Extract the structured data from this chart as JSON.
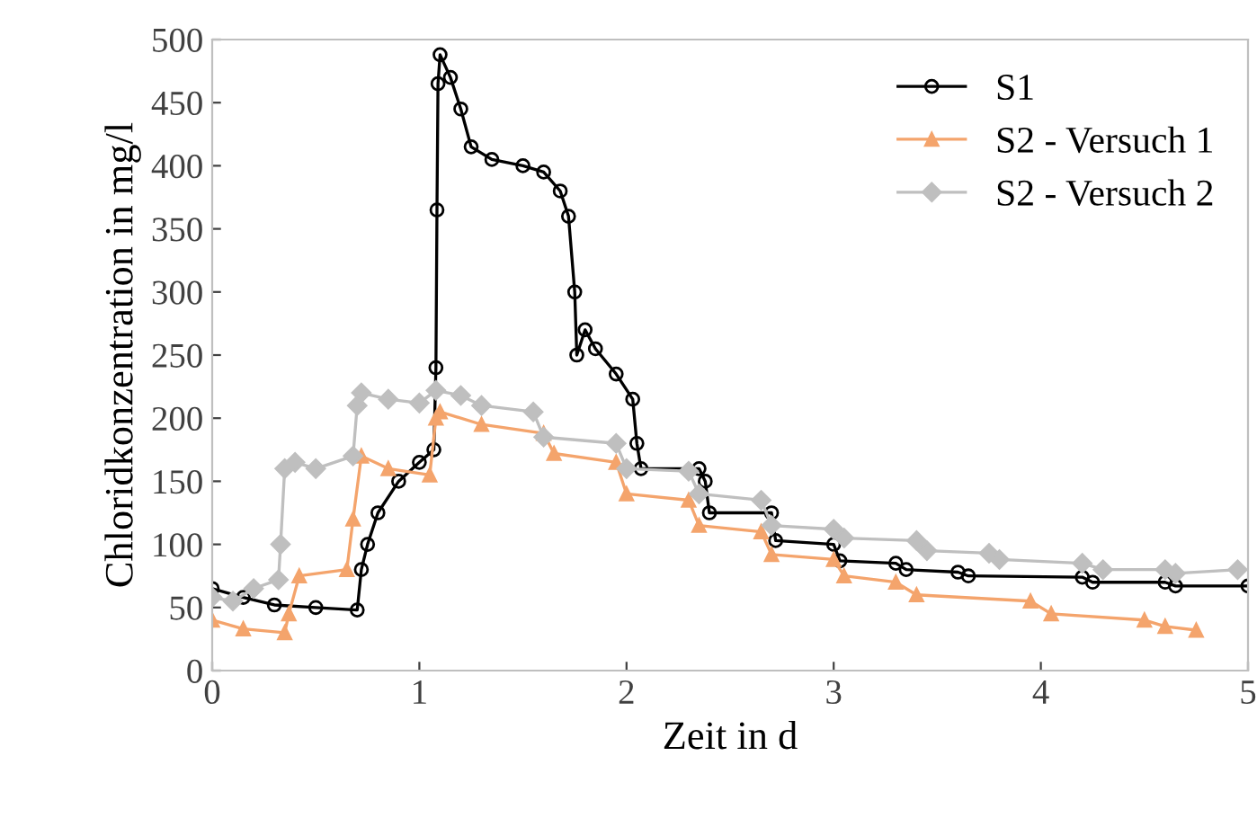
{
  "chart_data": {
    "type": "line",
    "xlabel": "Zeit in d",
    "ylabel": "Chloridkonzentration in mg/l",
    "xlim": [
      0,
      5
    ],
    "xticks": [
      0,
      1,
      2,
      3,
      4,
      5
    ],
    "ylim": [
      0,
      500
    ],
    "yticks": [
      0,
      50,
      100,
      150,
      200,
      250,
      300,
      350,
      400,
      450,
      500
    ],
    "grid": false,
    "legend": "top right",
    "series": [
      {
        "name": "S1",
        "color": "#000000",
        "marker": "circle",
        "x": [
          0,
          0.15,
          0.3,
          0.5,
          0.7,
          0.72,
          0.75,
          0.8,
          0.9,
          1.0,
          1.07,
          1.08,
          1.085,
          1.09,
          1.1,
          1.15,
          1.2,
          1.25,
          1.35,
          1.5,
          1.6,
          1.68,
          1.72,
          1.75,
          1.76,
          1.8,
          1.85,
          1.95,
          2.03,
          2.05,
          2.07,
          2.35,
          2.38,
          2.4,
          2.7,
          2.72,
          3.0,
          3.03,
          3.3,
          3.35,
          3.6,
          3.65,
          4.2,
          4.25,
          4.6,
          4.65,
          5.0
        ],
        "values": [
          65,
          58,
          52,
          50,
          48,
          80,
          100,
          125,
          150,
          165,
          175,
          240,
          365,
          465,
          488,
          470,
          445,
          415,
          405,
          400,
          395,
          380,
          360,
          300,
          250,
          270,
          255,
          235,
          215,
          180,
          160,
          160,
          150,
          125,
          125,
          103,
          100,
          87,
          85,
          80,
          78,
          75,
          74,
          70,
          70,
          67,
          67
        ]
      },
      {
        "name": "S2 - Versuch 1",
        "color": "#f4a46c",
        "marker": "triangle",
        "x": [
          0,
          0.15,
          0.35,
          0.37,
          0.42,
          0.65,
          0.68,
          0.72,
          0.85,
          1.05,
          1.08,
          1.1,
          1.3,
          1.6,
          1.65,
          1.95,
          2.0,
          2.3,
          2.35,
          2.65,
          2.7,
          3.0,
          3.05,
          3.3,
          3.4,
          3.95,
          4.05,
          4.5,
          4.6,
          4.75
        ],
        "values": [
          40,
          33,
          30,
          45,
          75,
          80,
          120,
          170,
          160,
          155,
          200,
          205,
          195,
          188,
          172,
          165,
          140,
          135,
          115,
          110,
          92,
          88,
          75,
          70,
          60,
          55,
          45,
          40,
          35,
          32
        ]
      },
      {
        "name": "S2 - Versuch 2",
        "color": "#bfbfbf",
        "marker": "diamond",
        "x": [
          0,
          0.1,
          0.2,
          0.32,
          0.33,
          0.35,
          0.4,
          0.5,
          0.68,
          0.7,
          0.72,
          0.85,
          1.0,
          1.08,
          1.2,
          1.3,
          1.55,
          1.6,
          1.95,
          2.0,
          2.3,
          2.35,
          2.65,
          2.7,
          3.0,
          3.05,
          3.4,
          3.45,
          3.75,
          3.8,
          4.2,
          4.3,
          4.6,
          4.65,
          4.95
        ],
        "values": [
          58,
          55,
          65,
          72,
          100,
          160,
          165,
          160,
          170,
          210,
          220,
          215,
          212,
          222,
          218,
          210,
          205,
          185,
          180,
          160,
          158,
          140,
          135,
          115,
          112,
          105,
          103,
          95,
          93,
          88,
          85,
          80,
          80,
          77,
          80
        ]
      }
    ]
  }
}
